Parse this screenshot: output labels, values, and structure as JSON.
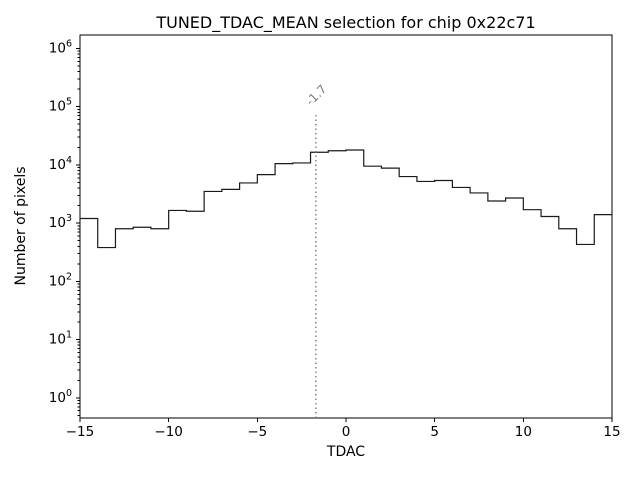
{
  "chart_data": {
    "type": "histogram",
    "title": "TUNED_TDAC_MEAN selection for chip 0x22c71",
    "xlabel": "TDAC",
    "ylabel": "Number of pixels",
    "yscale": "log",
    "xlim": [
      -15,
      15
    ],
    "ylim": [
      0.45,
      1700000
    ],
    "grid": false,
    "line_color": "#1a1a1a",
    "background": "#ffffff",
    "bin_edges": [
      -15,
      -14,
      -13,
      -12,
      -11,
      -10,
      -9,
      -8,
      -7,
      -6,
      -5,
      -4,
      -3,
      -2,
      -1,
      0,
      1,
      2,
      3,
      4,
      5,
      6,
      7,
      8,
      9,
      10,
      11,
      12,
      13,
      14,
      15
    ],
    "counts": [
      1200,
      380,
      800,
      850,
      800,
      1650,
      1600,
      3500,
      3800,
      4900,
      6800,
      10500,
      10800,
      16500,
      17500,
      18000,
      9500,
      8800,
      6300,
      5200,
      5400,
      4100,
      3300,
      2400,
      2700,
      1700,
      1300,
      800,
      430,
      1400
    ],
    "x_ticks": [
      {
        "value": -15,
        "label": "−15"
      },
      {
        "value": -10,
        "label": "−10"
      },
      {
        "value": -5,
        "label": "−5"
      },
      {
        "value": 0,
        "label": "0"
      },
      {
        "value": 5,
        "label": "5"
      },
      {
        "value": 10,
        "label": "10"
      },
      {
        "value": 15,
        "label": "15"
      }
    ],
    "y_ticks": [
      {
        "base": "10",
        "exp": "0"
      },
      {
        "base": "10",
        "exp": "1"
      },
      {
        "base": "10",
        "exp": "2"
      },
      {
        "base": "10",
        "exp": "3"
      },
      {
        "base": "10",
        "exp": "4"
      },
      {
        "base": "10",
        "exp": "5"
      },
      {
        "base": "10",
        "exp": "6"
      }
    ],
    "annotation": {
      "x": -1.7,
      "label": "-1.7",
      "line_top": 80000,
      "color": "#7f7f7f",
      "line_style": "dotted"
    }
  }
}
